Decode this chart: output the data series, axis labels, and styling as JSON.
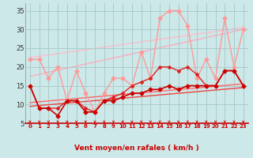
{
  "xlabel": "Vent moyen/en rafales ( km/h )",
  "background_color": "#cce8e8",
  "grid_color": "#aacccc",
  "xlim": [
    -0.5,
    23.5
  ],
  "ylim": [
    5,
    37
  ],
  "yticks": [
    5,
    10,
    15,
    20,
    25,
    30,
    35
  ],
  "xticks": [
    0,
    1,
    2,
    3,
    4,
    5,
    6,
    7,
    8,
    9,
    10,
    11,
    12,
    13,
    14,
    15,
    16,
    17,
    18,
    19,
    20,
    21,
    22,
    23
  ],
  "line_pale1": {
    "x": [
      0,
      23
    ],
    "y": [
      22.5,
      30.5
    ],
    "color": "#ffbbcc",
    "lw": 1.0
  },
  "line_pale2": {
    "x": [
      0,
      23
    ],
    "y": [
      17.5,
      30.0
    ],
    "color": "#ffaabb",
    "lw": 1.0
  },
  "line_rafales": {
    "x": [
      0,
      1,
      2,
      3,
      4,
      5,
      6,
      7,
      8,
      9,
      10,
      11,
      12,
      13,
      14,
      15,
      16,
      17,
      18,
      19,
      20,
      21,
      22,
      23
    ],
    "y": [
      22,
      22,
      17,
      20,
      11,
      19,
      13,
      8,
      13,
      17,
      17,
      15,
      24,
      17,
      33,
      35,
      35,
      31,
      17,
      22,
      17,
      33,
      20,
      30
    ],
    "color": "#ff9999",
    "lw": 1.0,
    "ms": 2.5
  },
  "line_med1": {
    "x": [
      0,
      23
    ],
    "y": [
      10.5,
      15.5
    ],
    "color": "#ff6666",
    "lw": 1.0
  },
  "line_med2": {
    "x": [
      0,
      23
    ],
    "y": [
      9.5,
      14.5
    ],
    "color": "#ee4444",
    "lw": 1.0
  },
  "line_moyen": {
    "x": [
      0,
      1,
      2,
      3,
      4,
      5,
      6,
      7,
      8,
      9,
      10,
      11,
      12,
      13,
      14,
      15,
      16,
      17,
      18,
      19,
      20,
      21,
      22,
      23
    ],
    "y": [
      15,
      9,
      9,
      7,
      11,
      11,
      8,
      8,
      11,
      11,
      12,
      13,
      13,
      14,
      14,
      15,
      14,
      15,
      15,
      15,
      15,
      19,
      19,
      15
    ],
    "color": "#cc0000",
    "lw": 1.2,
    "ms": 2.5
  },
  "line_moyen2": {
    "x": [
      0,
      1,
      2,
      3,
      4,
      5,
      6,
      7,
      8,
      9,
      10,
      11,
      12,
      13,
      14,
      15,
      16,
      17,
      18,
      19,
      20,
      21,
      22,
      23
    ],
    "y": [
      15,
      9,
      9,
      9,
      11,
      11,
      9,
      8,
      11,
      12,
      13,
      15,
      16,
      17,
      20,
      20,
      19,
      20,
      18,
      15,
      15,
      19,
      19,
      15
    ],
    "color": "#dd2222",
    "lw": 1.0,
    "ms": 2.0
  },
  "arrow_color": "#cc0000",
  "axis_label_color": "#cc0000"
}
